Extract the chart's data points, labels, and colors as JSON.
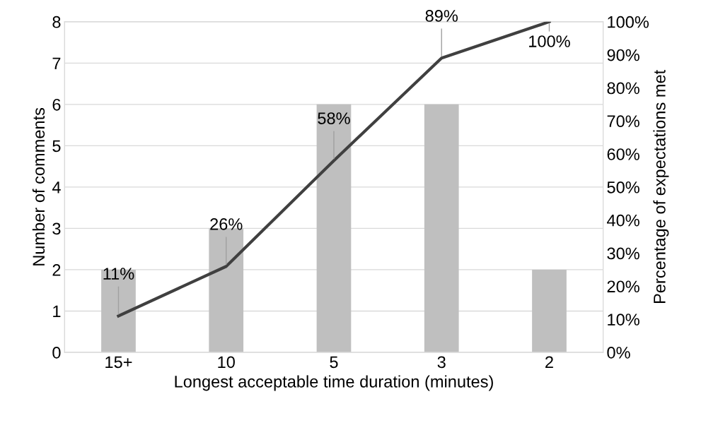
{
  "chart_data": {
    "type": "bar",
    "xlabel": "Longest acceptable time duration (minutes)",
    "ylabel": "Number of comments",
    "y2label": "Percentage of expectations met",
    "categories": [
      "15+",
      "10",
      "5",
      "3",
      "2"
    ],
    "series": [
      {
        "color": "#bfbfbf",
        "values": [
          2,
          3,
          6,
          6,
          2
        ]
      },
      {
        "type": "line",
        "axis": "y2",
        "color": "#404040",
        "values": [
          11,
          26,
          58,
          89,
          100
        ],
        "value_labels": [
          "11%",
          "26%",
          "58%",
          "89%",
          "100%"
        ]
      }
    ],
    "ylim": [
      0,
      8
    ],
    "yticks": [
      0,
      1,
      2,
      3,
      4,
      5,
      6,
      7,
      8
    ],
    "y2lim": [
      0,
      100
    ],
    "y2ticks": [
      {
        "value": 0,
        "label": "0%"
      },
      {
        "value": 10,
        "label": "10%"
      },
      {
        "value": 20,
        "label": "20%"
      },
      {
        "value": 30,
        "label": "30%"
      },
      {
        "value": 40,
        "label": "40%"
      },
      {
        "value": 50,
        "label": "50%"
      },
      {
        "value": 60,
        "label": "60%"
      },
      {
        "value": 70,
        "label": "70%"
      },
      {
        "value": 80,
        "label": "80%"
      },
      {
        "value": 90,
        "label": "90%"
      },
      {
        "value": 100,
        "label": "100%"
      }
    ],
    "grid": "y",
    "marker": "none",
    "line_style": "solid"
  }
}
